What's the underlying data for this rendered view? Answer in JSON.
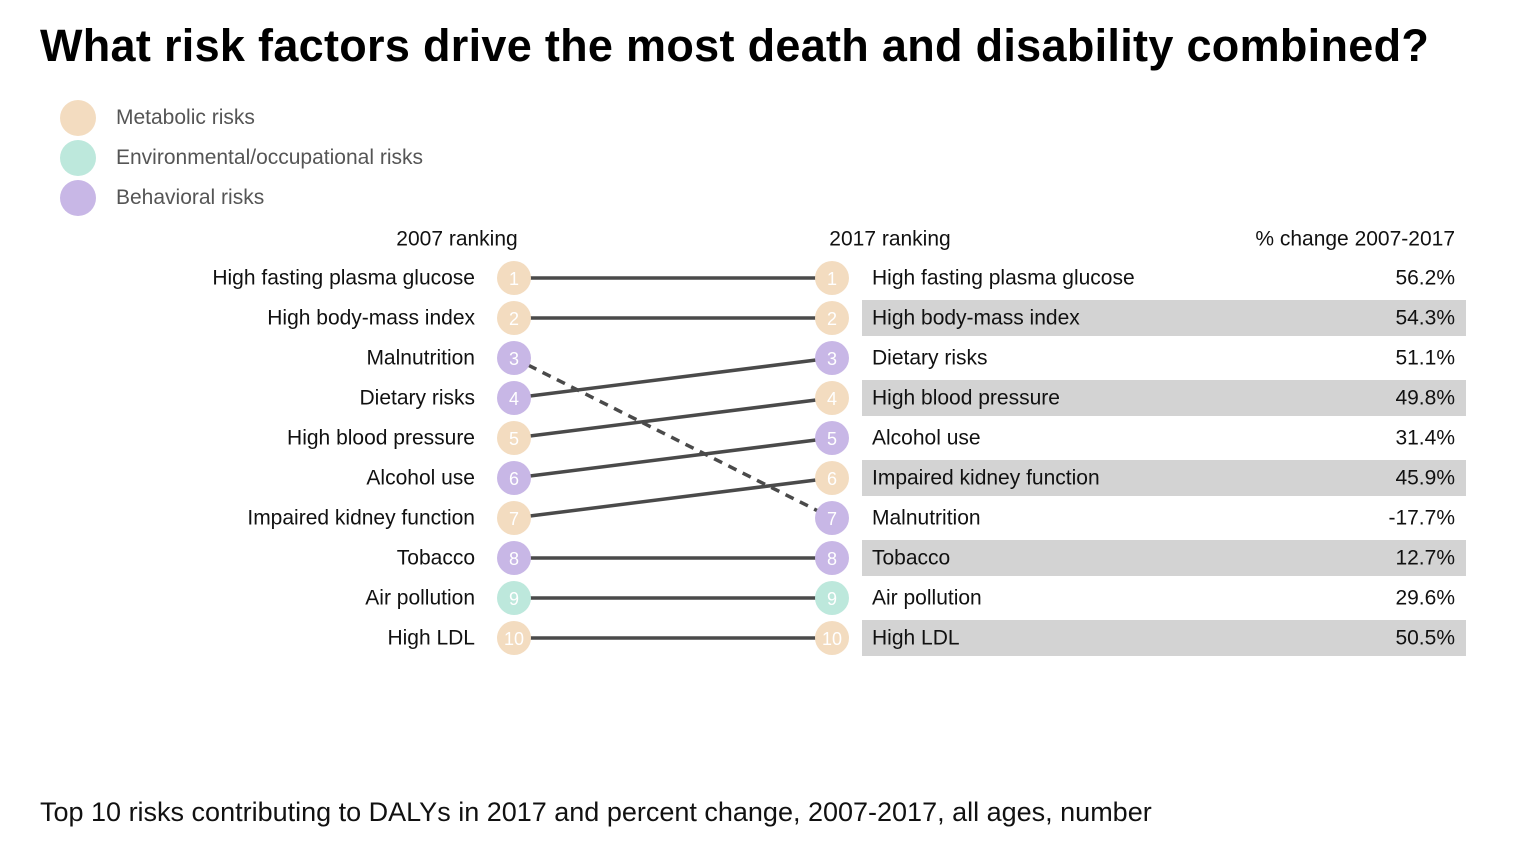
{
  "title": "What risk factors drive the most death and disability combined?",
  "caption": "Top 10 risks contributing to DALYs in 2017 and percent change, 2007-2017, all ages, number",
  "legend": [
    {
      "label": "Metabolic risks",
      "color": "#f3dcc0"
    },
    {
      "label": "Environmental/occupational risks",
      "color": "#bde8dc"
    },
    {
      "label": "Behavioral risks",
      "color": "#c8b7e6"
    }
  ],
  "colors": {
    "metabolic": "#f3dcc0",
    "environmental": "#bde8dc",
    "behavioral": "#c8b7e6",
    "connector": "#4a4a4a",
    "row_band": "#d3d3d3"
  },
  "chart_data": {
    "type": "slope",
    "left_header": "2007 ranking",
    "right_header": "2017 ranking",
    "change_header": "% change 2007-2017",
    "rows_2007": [
      {
        "rank": "1",
        "label": "High fasting plasma glucose",
        "category": "metabolic"
      },
      {
        "rank": "2",
        "label": "High body-mass index",
        "category": "metabolic"
      },
      {
        "rank": "3",
        "label": "Malnutrition",
        "category": "behavioral"
      },
      {
        "rank": "4",
        "label": "Dietary risks",
        "category": "behavioral"
      },
      {
        "rank": "5",
        "label": "High blood pressure",
        "category": "metabolic"
      },
      {
        "rank": "6",
        "label": "Alcohol use",
        "category": "behavioral"
      },
      {
        "rank": "7",
        "label": "Impaired kidney function",
        "category": "metabolic"
      },
      {
        "rank": "8",
        "label": "Tobacco",
        "category": "behavioral"
      },
      {
        "rank": "9",
        "label": "Air pollution",
        "category": "environmental"
      },
      {
        "rank": "10",
        "label": "High LDL",
        "category": "metabolic"
      }
    ],
    "rows_2017": [
      {
        "rank": "1",
        "label": "High fasting plasma glucose",
        "category": "metabolic",
        "change": "56.2%",
        "shaded": false
      },
      {
        "rank": "2",
        "label": "High body-mass index",
        "category": "metabolic",
        "change": "54.3%",
        "shaded": true
      },
      {
        "rank": "3",
        "label": "Dietary risks",
        "category": "behavioral",
        "change": "51.1%",
        "shaded": false
      },
      {
        "rank": "4",
        "label": "High blood pressure",
        "category": "metabolic",
        "change": "49.8%",
        "shaded": true
      },
      {
        "rank": "5",
        "label": "Alcohol use",
        "category": "behavioral",
        "change": "31.4%",
        "shaded": false
      },
      {
        "rank": "6",
        "label": "Impaired kidney function",
        "category": "metabolic",
        "change": "45.9%",
        "shaded": true
      },
      {
        "rank": "7",
        "label": "Malnutrition",
        "category": "behavioral",
        "change": "-17.7%",
        "shaded": false
      },
      {
        "rank": "8",
        "label": "Tobacco",
        "category": "behavioral",
        "change": "12.7%",
        "shaded": true
      },
      {
        "rank": "9",
        "label": "Air pollution",
        "category": "environmental",
        "change": "29.6%",
        "shaded": false
      },
      {
        "rank": "10",
        "label": "High LDL",
        "category": "metabolic",
        "change": "50.5%",
        "shaded": true
      }
    ],
    "links": [
      {
        "from": 1,
        "to": 1,
        "style": "solid"
      },
      {
        "from": 2,
        "to": 2,
        "style": "solid"
      },
      {
        "from": 3,
        "to": 7,
        "style": "dashed"
      },
      {
        "from": 4,
        "to": 3,
        "style": "solid"
      },
      {
        "from": 5,
        "to": 4,
        "style": "solid"
      },
      {
        "from": 6,
        "to": 5,
        "style": "solid"
      },
      {
        "from": 7,
        "to": 6,
        "style": "solid"
      },
      {
        "from": 8,
        "to": 8,
        "style": "solid"
      },
      {
        "from": 9,
        "to": 9,
        "style": "solid"
      },
      {
        "from": 10,
        "to": 10,
        "style": "solid"
      }
    ]
  }
}
